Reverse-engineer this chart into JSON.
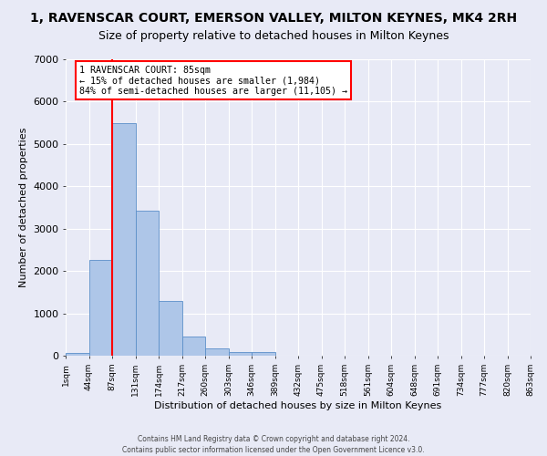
{
  "title": "1, RAVENSCAR COURT, EMERSON VALLEY, MILTON KEYNES, MK4 2RH",
  "subtitle": "Size of property relative to detached houses in Milton Keynes",
  "xlabel": "Distribution of detached houses by size in Milton Keynes",
  "ylabel": "Number of detached properties",
  "bar_values": [
    75,
    2270,
    5490,
    3430,
    1300,
    460,
    165,
    90,
    85,
    0,
    0,
    0,
    0,
    0,
    0,
    0,
    0,
    0,
    0,
    0
  ],
  "bin_labels": [
    "1sqm",
    "44sqm",
    "87sqm",
    "131sqm",
    "174sqm",
    "217sqm",
    "260sqm",
    "303sqm",
    "346sqm",
    "389sqm",
    "432sqm",
    "475sqm",
    "518sqm",
    "561sqm",
    "604sqm",
    "648sqm",
    "691sqm",
    "734sqm",
    "777sqm",
    "820sqm",
    "863sqm"
  ],
  "bar_color": "#aec6e8",
  "bar_edge_color": "#5b8fc9",
  "bg_color": "#e8eaf6",
  "grid_color": "#ffffff",
  "vline_color": "red",
  "annotation_title": "1 RAVENSCAR COURT: 85sqm",
  "annotation_line2": "← 15% of detached houses are smaller (1,984)",
  "annotation_line3": "84% of semi-detached houses are larger (11,105) →",
  "annotation_box_color": "white",
  "annotation_edge_color": "red",
  "ylim": [
    0,
    7000
  ],
  "yticks": [
    0,
    1000,
    2000,
    3000,
    4000,
    5000,
    6000,
    7000
  ],
  "footer": "Contains HM Land Registry data © Crown copyright and database right 2024.\nContains public sector information licensed under the Open Government Licence v3.0.",
  "title_fontsize": 10,
  "subtitle_fontsize": 9
}
